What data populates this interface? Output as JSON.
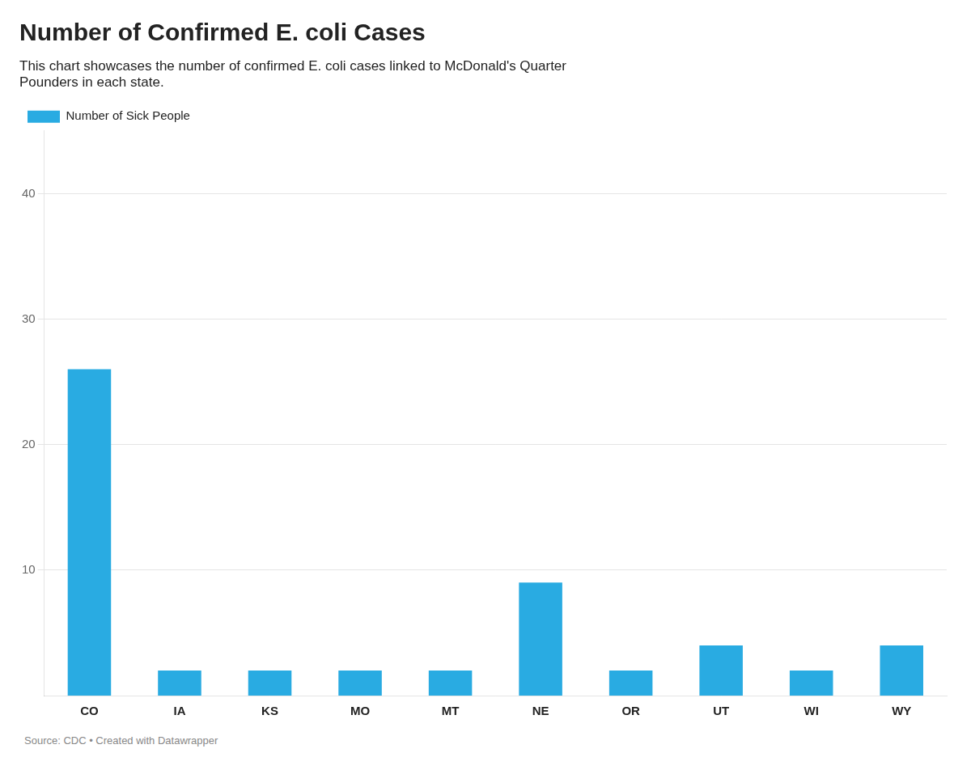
{
  "chart_data": {
    "type": "bar",
    "title": "Number of Confirmed E. coli Cases",
    "subtitle": "This chart showcases the number of confirmed E. coli cases linked to McDonald's Quarter\nPounders in each state.",
    "annotations": [
      "Source: CDC • Created with Datawrapper"
    ],
    "categories": [
      "CO",
      "IA",
      "KS",
      "MO",
      "MT",
      "NE",
      "OR",
      "UT",
      "WI",
      "WY"
    ],
    "series": [
      {
        "name": "Number of Sick People",
        "color": "#29abe2",
        "values": [
          26,
          2,
          2,
          2,
          2,
          9,
          2,
          4,
          2,
          4
        ]
      }
    ],
    "ylim": [
      0,
      45
    ],
    "yticks": [
      10,
      20,
      30,
      40
    ],
    "grid": true
  }
}
